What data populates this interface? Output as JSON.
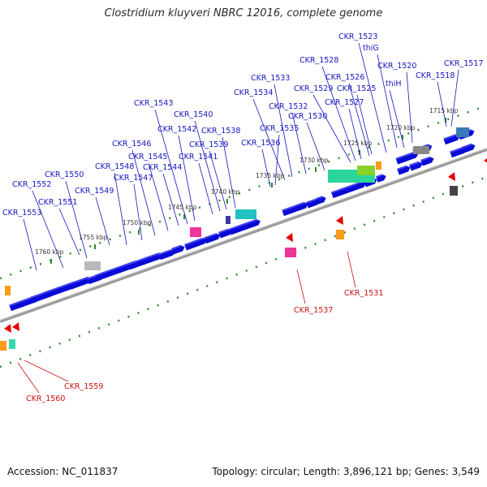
{
  "title": "Clostridium kluyveri NBRC 12016, complete genome",
  "footer": {
    "accession": "Accession: NC_011837",
    "summary": "Topology: circular; Length: 3,896,121 bp; Genes: 3,549"
  },
  "colors": {
    "forward_gene": "#0a0ad6",
    "reverse_gene": "#e80000",
    "forward_label": "#1515c0",
    "reverse_label": "#cc1111",
    "backbone": "#8a8a8a",
    "tick": "#2b8a2b"
  },
  "scale_labels": [
    "1715 kbp",
    "1720 kbp",
    "1725 kbp",
    "1730 kbp",
    "1735 kbp",
    "1740 kbp",
    "1745 kbp",
    "1750 kbp",
    "1755 kbp",
    "1760 kbp"
  ],
  "forward_labels": [
    "CKR_1517",
    "CKR_1518",
    "CKR_1520",
    "thiH",
    "thiG",
    "CKR_1523",
    "CKR_1525",
    "CKR_1526",
    "CKR_1527",
    "CKR_1528",
    "CKR_1529",
    "CKR_1530",
    "CKR_1532",
    "CKR_1533",
    "CKR_1534",
    "CKR_1535",
    "CKR_1536",
    "CKR_1538",
    "CKR_1539",
    "CKR_1540",
    "CKR_1541",
    "CKR_1542",
    "CKR_1543",
    "CKR_1544",
    "CKR_1545",
    "CKR_1546",
    "CKR_1547",
    "CKR_1548",
    "CKR_1549",
    "CKR_1550",
    "CKR_1551",
    "CKR_1552",
    "CKR_1553"
  ],
  "reverse_labels": [
    "CKR_1531",
    "CKR_1537",
    "CKR_1559",
    "CKR_1560"
  ]
}
